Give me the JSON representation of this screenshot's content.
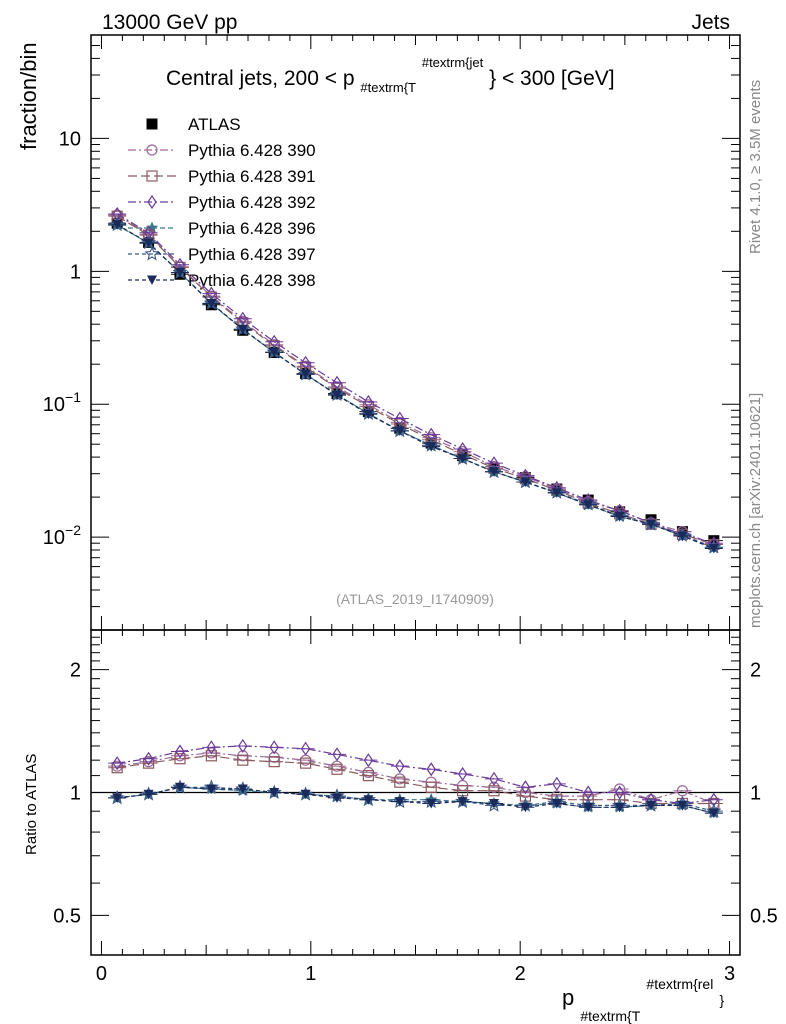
{
  "header": {
    "left": "13000 GeV pp",
    "right": "Jets"
  },
  "side_labels": {
    "rivet": "Rivet 4.1.0, ≥ 3.5M events",
    "mcplots": "mcplots.cern.ch [arXiv:2401.10621]"
  },
  "chart_data": [
    {
      "type": "scatter",
      "panel": "main",
      "title_parts": {
        "pre": "Central jets, 200 < p",
        "sub": "#textrm{T",
        "sup": "#textrm{jet",
        "post": "} < 300 [GeV]"
      },
      "ylabel": "fraction/bin",
      "yscale": "log",
      "ylim": [
        0.002,
        60
      ],
      "yticks": [
        {
          "v": 10,
          "label": "10"
        },
        {
          "v": 1,
          "label": "1"
        },
        {
          "v": 0.1,
          "base": "10",
          "exp": "−1"
        },
        {
          "v": 0.01,
          "base": "10",
          "exp": "−2"
        }
      ],
      "watermark": "(ATLAS_2019_I1740909)",
      "x": [
        0.075,
        0.225,
        0.375,
        0.525,
        0.675,
        0.825,
        0.975,
        1.125,
        1.275,
        1.425,
        1.575,
        1.725,
        1.875,
        2.025,
        2.175,
        2.325,
        2.475,
        2.625,
        2.775,
        2.925
      ],
      "series": [
        {
          "name": "ATLAS",
          "marker": "square-filled",
          "color": "#000000",
          "values": [
            2.3,
            1.65,
            0.95,
            0.56,
            0.36,
            0.245,
            0.17,
            0.12,
            0.088,
            0.066,
            0.051,
            0.041,
            0.033,
            0.028,
            0.023,
            0.019,
            0.0155,
            0.0135,
            0.011,
            0.0094
          ]
        },
        {
          "name": "Pythia 6.428 390",
          "marker": "circle-open",
          "color": "#9a6a9a",
          "values": [
            2.65,
            1.9,
            1.08,
            0.65,
            0.42,
            0.28,
            0.193,
            0.135,
            0.099,
            0.073,
            0.056,
            0.044,
            0.034,
            0.0285,
            0.023,
            0.0185,
            0.0158,
            0.0128,
            0.011,
            0.0088
          ]
        },
        {
          "name": "Pythia 6.428 391",
          "marker": "square-open",
          "color": "#8a5a60",
          "values": [
            2.6,
            1.87,
            1.07,
            0.64,
            0.41,
            0.275,
            0.19,
            0.132,
            0.096,
            0.071,
            0.054,
            0.042,
            0.033,
            0.0275,
            0.0225,
            0.018,
            0.015,
            0.0125,
            0.0105,
            0.0088
          ]
        },
        {
          "name": "Pythia 6.428 392",
          "marker": "diamond-open",
          "color": "#6a3a9a",
          "values": [
            2.7,
            1.95,
            1.12,
            0.68,
            0.44,
            0.295,
            0.205,
            0.145,
            0.104,
            0.078,
            0.059,
            0.046,
            0.036,
            0.029,
            0.0235,
            0.019,
            0.0158,
            0.0128,
            0.0105,
            0.009
          ]
        },
        {
          "name": "Pythia 6.428 396",
          "marker": "star-filled",
          "color": "#3a7a8a",
          "values": [
            2.22,
            1.63,
            0.98,
            0.57,
            0.365,
            0.245,
            0.168,
            0.118,
            0.085,
            0.063,
            0.049,
            0.039,
            0.031,
            0.026,
            0.0215,
            0.0175,
            0.0143,
            0.0125,
            0.0102,
            0.0083
          ]
        },
        {
          "name": "Pythia 6.428 397",
          "marker": "star-open",
          "color": "#3a5a8a",
          "values": [
            2.24,
            1.64,
            0.98,
            0.575,
            0.367,
            0.246,
            0.168,
            0.118,
            0.085,
            0.063,
            0.049,
            0.039,
            0.031,
            0.026,
            0.0217,
            0.0177,
            0.0145,
            0.0125,
            0.0103,
            0.0084
          ]
        },
        {
          "name": "Pythia 6.428 398",
          "marker": "triangle-down-filled",
          "color": "#1a2a5a",
          "values": [
            2.24,
            1.63,
            0.98,
            0.573,
            0.366,
            0.246,
            0.168,
            0.117,
            0.084,
            0.063,
            0.048,
            0.039,
            0.031,
            0.026,
            0.0215,
            0.0175,
            0.0143,
            0.0125,
            0.0102,
            0.0082
          ]
        }
      ]
    },
    {
      "type": "scatter",
      "panel": "ratio",
      "ylabel": "Ratio to ATLAS",
      "yscale": "log",
      "ylim": [
        0.4,
        2.5
      ],
      "yticks": [
        {
          "v": 2,
          "label": "2"
        },
        {
          "v": 1,
          "label": "1"
        },
        {
          "v": 0.5,
          "label": "0.5"
        }
      ],
      "xlabel_parts": {
        "base": "p",
        "sub": "#textrm{T",
        "sup": "#textrm{rel",
        "post": "}"
      },
      "xlim": [
        -0.05,
        3.05
      ],
      "xticks": [
        {
          "v": 0,
          "label": "0"
        },
        {
          "v": 1,
          "label": "1"
        },
        {
          "v": 2,
          "label": "2"
        },
        {
          "v": 3,
          "label": "3"
        }
      ],
      "x": [
        0.075,
        0.225,
        0.375,
        0.525,
        0.675,
        0.825,
        0.975,
        1.125,
        1.275,
        1.425,
        1.575,
        1.725,
        1.875,
        2.025,
        2.175,
        2.325,
        2.475,
        2.625,
        2.775,
        2.925
      ],
      "reference": 1,
      "series": [
        {
          "name": "Pythia 6.428 390",
          "marker": "circle-open",
          "color": "#9a6a9a",
          "values": [
            1.16,
            1.19,
            1.23,
            1.25,
            1.23,
            1.22,
            1.2,
            1.16,
            1.12,
            1.08,
            1.06,
            1.04,
            1.03,
            1.0,
            0.98,
            0.98,
            1.02,
            0.96,
            1.01,
            0.94
          ]
        },
        {
          "name": "Pythia 6.428 391",
          "marker": "square-open",
          "color": "#8a5a60",
          "values": [
            1.15,
            1.18,
            1.21,
            1.23,
            1.2,
            1.19,
            1.18,
            1.14,
            1.1,
            1.06,
            1.03,
            1.01,
            1.01,
            0.98,
            0.96,
            0.96,
            0.96,
            0.94,
            0.94,
            0.94
          ]
        },
        {
          "name": "Pythia 6.428 392",
          "marker": "diamond-open",
          "color": "#6a3a9a",
          "values": [
            1.18,
            1.21,
            1.26,
            1.29,
            1.3,
            1.29,
            1.28,
            1.24,
            1.2,
            1.16,
            1.14,
            1.11,
            1.08,
            1.03,
            1.05,
            1.0,
            1.0,
            0.96,
            0.94,
            0.96
          ]
        },
        {
          "name": "Pythia 6.428 396",
          "marker": "star-filled",
          "color": "#3a7a8a",
          "values": [
            0.97,
            0.99,
            1.03,
            1.02,
            1.01,
            1.0,
            0.99,
            0.98,
            0.96,
            0.96,
            0.96,
            0.95,
            0.94,
            0.93,
            0.94,
            0.92,
            0.92,
            0.93,
            0.93,
            0.89
          ]
        },
        {
          "name": "Pythia 6.428 397",
          "marker": "star-open",
          "color": "#3a5a8a",
          "values": [
            0.97,
            0.99,
            1.03,
            1.03,
            1.02,
            1.0,
            0.99,
            0.98,
            0.96,
            0.95,
            0.95,
            0.95,
            0.93,
            0.93,
            0.95,
            0.93,
            0.93,
            0.93,
            0.94,
            0.9
          ]
        },
        {
          "name": "Pythia 6.428 398",
          "marker": "triangle-down-filled",
          "color": "#1a2a5a",
          "values": [
            0.97,
            0.99,
            1.03,
            1.02,
            1.02,
            1.0,
            0.99,
            0.97,
            0.96,
            0.95,
            0.94,
            0.95,
            0.94,
            0.92,
            0.94,
            0.92,
            0.92,
            0.93,
            0.93,
            0.89
          ]
        }
      ]
    }
  ]
}
